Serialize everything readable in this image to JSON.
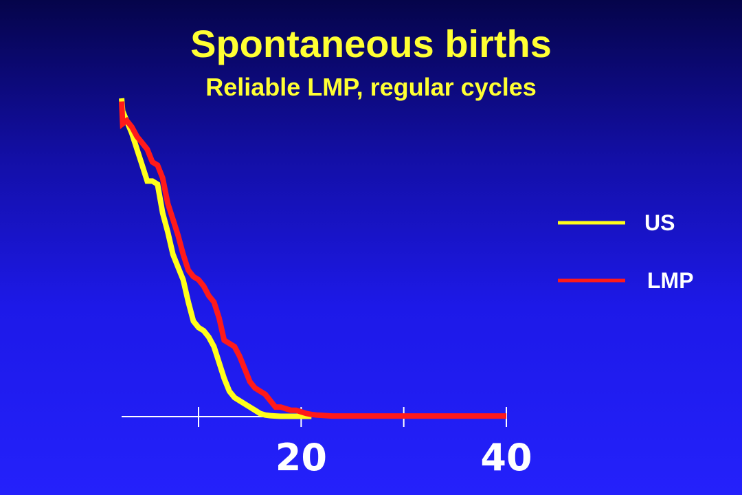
{
  "chart_data": {
    "type": "line",
    "title": "Spontaneous births",
    "subtitle": "Reliable LMP, regular cycles",
    "xlabel": "",
    "ylabel": "",
    "x_ticks": [
      10,
      20,
      30,
      40
    ],
    "x_tick_labels": [
      {
        "value": 20,
        "label": "20"
      },
      {
        "value": 40,
        "label": "40"
      }
    ],
    "xlim": [
      2.5,
      40
    ],
    "ylim": [
      0,
      100
    ],
    "grid": false,
    "legend_position": "right",
    "series": [
      {
        "name": "US",
        "color": "#ffff1a",
        "x": [
          2.5,
          2.6,
          3.5,
          4.0,
          4.5,
          5.0,
          5.5,
          6.0,
          6.5,
          7.0,
          7.5,
          8.0,
          8.5,
          9.0,
          9.5,
          10.0,
          10.5,
          11.0,
          11.5,
          12.0,
          12.5,
          13.0,
          13.5,
          14.0,
          14.5,
          15.0,
          15.5,
          16.0,
          16.5,
          17.0,
          17.5,
          18.0,
          18.5,
          19.0,
          19.5,
          20.0,
          20.5,
          21.0
        ],
        "y": [
          100,
          96,
          89,
          84,
          79,
          74,
          74,
          73,
          64,
          58,
          51,
          47,
          43,
          36,
          30,
          28,
          27,
          25,
          22,
          17,
          12,
          8,
          6,
          5,
          4,
          3,
          2,
          1,
          0.5,
          0.3,
          0.2,
          0.1,
          0.1,
          0.1,
          0.1,
          0.1,
          0.1,
          0.1
        ]
      },
      {
        "name": "LMP",
        "color": "#ff1a1a",
        "x": [
          2.5,
          2.6,
          3.0,
          3.5,
          4.0,
          4.5,
          5.0,
          5.5,
          6.0,
          6.5,
          7.0,
          7.5,
          8.0,
          8.5,
          9.0,
          9.5,
          10.0,
          10.5,
          11.0,
          11.5,
          12.0,
          12.5,
          13.0,
          13.5,
          14.0,
          14.5,
          15.0,
          15.5,
          16.0,
          16.5,
          17.0,
          17.5,
          18.0,
          18.5,
          19.0,
          19.5,
          20.0,
          20.5,
          21.0,
          21.5,
          22.0,
          22.5,
          23.0,
          23.5,
          24.0,
          24.5,
          25.0,
          25.5,
          26.0,
          26.5,
          27.0,
          27.5,
          28.0,
          28.5,
          29.0,
          29.5,
          30.0,
          30.5,
          31.0,
          31.5,
          32.0,
          32.5,
          33.0,
          33.5,
          34.0,
          34.5,
          35.0,
          35.5,
          36.0,
          36.5,
          37.0,
          37.5,
          38.0,
          38.5,
          39.0,
          39.5,
          40.0
        ],
        "y": [
          99,
          92,
          93,
          91,
          88,
          86,
          84,
          80,
          79,
          75,
          67,
          62,
          57,
          51,
          46,
          44,
          43,
          41,
          38,
          36,
          31,
          24,
          23,
          22,
          19,
          15,
          11,
          9,
          8,
          7,
          5,
          3,
          3,
          2.5,
          2,
          2,
          1.5,
          1,
          0.7,
          0.5,
          0.4,
          0.3,
          0.2,
          0.2,
          0.2,
          0.2,
          0.2,
          0.2,
          0.2,
          0.2,
          0.2,
          0.2,
          0.2,
          0.2,
          0.2,
          0.2,
          0.2,
          0.2,
          0.2,
          0.2,
          0.2,
          0.2,
          0.2,
          0.2,
          0.2,
          0.2,
          0.2,
          0.2,
          0.2,
          0.2,
          0.2,
          0.2,
          0.2,
          0.2,
          0.2,
          0.2,
          0.2
        ]
      }
    ]
  }
}
